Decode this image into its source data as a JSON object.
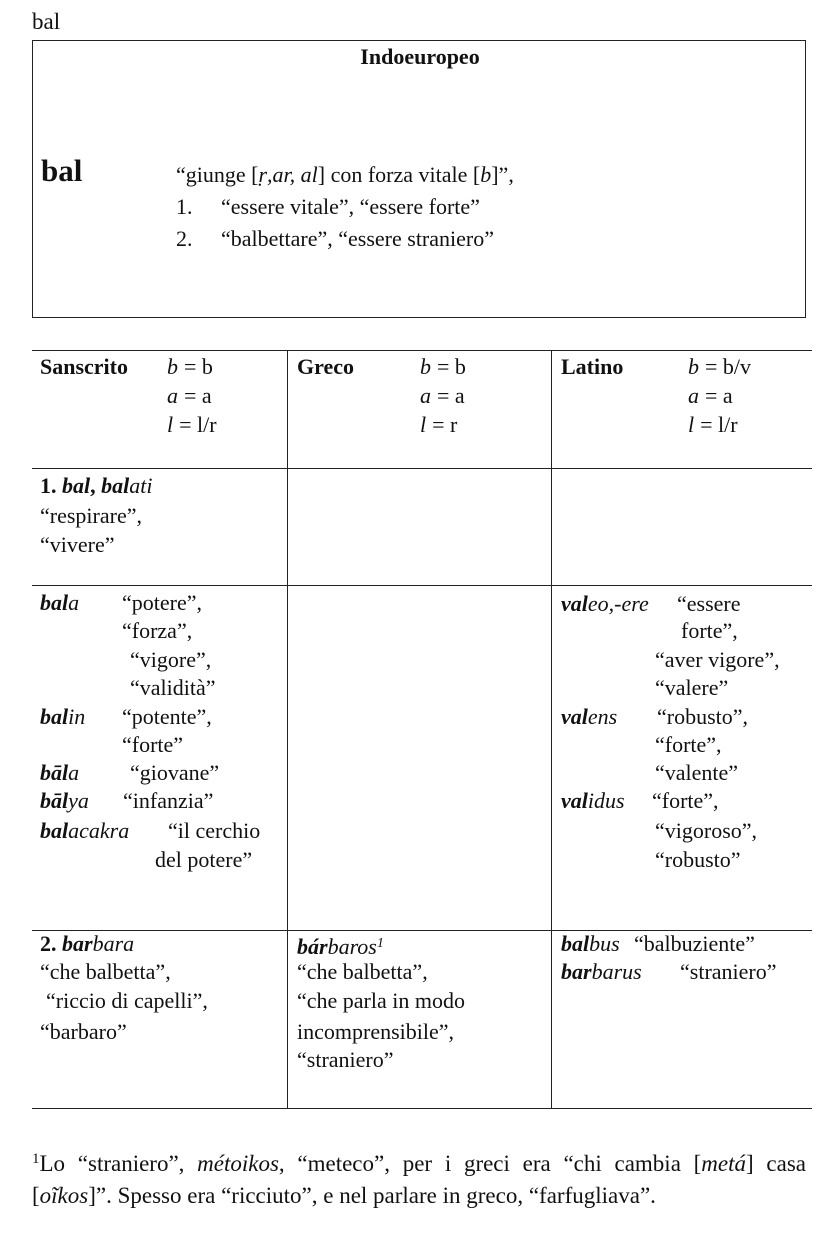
{
  "header": {
    "label": "bal"
  },
  "box": {
    "title": "Indoeuropeo",
    "root": "bal",
    "definition": [
      "“giunge [",
      "ṛ,ar, al",
      "] con forza vitale [",
      "b",
      "]”,"
    ],
    "meanings": [
      [
        "1.",
        "“essere vitale”, “essere forte”"
      ],
      [
        "2.",
        "“balbettare”, “essere straniero”"
      ]
    ]
  },
  "table": {
    "columns": [
      {
        "name": "Sanscrito",
        "rules": [
          [
            "b",
            "= b"
          ],
          [
            "a",
            "= a"
          ],
          [
            "l",
            "= l/r"
          ]
        ]
      },
      {
        "name": "Greco",
        "rules": [
          [
            "b",
            "= b"
          ],
          [
            "a",
            "= a"
          ],
          [
            "l",
            "= r"
          ]
        ]
      },
      {
        "name": "Latino",
        "rules": [
          [
            "b",
            "= b/v"
          ],
          [
            "a",
            "= a"
          ],
          [
            "l",
            "= l/r"
          ]
        ]
      }
    ],
    "rows": [
      [
        [
          [
            "1. ",
            "bal",
            ", ",
            "bal",
            "ati"
          ],
          [
            "“respirare”,"
          ],
          [
            "“vivere”"
          ]
        ],
        [],
        []
      ],
      [
        [
          [
            "bal",
            "a",
            "“potere”,"
          ],
          [
            "“forza”,"
          ],
          [
            "“vigore”,"
          ],
          [
            "“validità”"
          ],
          [
            "bal",
            "in",
            "“potente”,"
          ],
          [
            "“forte”"
          ],
          [
            "bāl",
            "a",
            "“giovane”"
          ],
          [
            "bāl",
            "ya",
            "“infanzia”"
          ],
          [
            "bal",
            "acakra",
            "“il cerchio"
          ],
          [
            "del potere”"
          ]
        ],
        [],
        [
          [
            "val",
            "eo,-ere",
            "“essere"
          ],
          [
            "forte”,"
          ],
          [
            "“aver vigore”,"
          ],
          [
            "“valere”"
          ],
          [
            "val",
            "ens",
            "“robusto”,"
          ],
          [
            "“forte”,"
          ],
          [
            "“valente”"
          ],
          [
            "val",
            "idus",
            "“forte”,"
          ],
          [
            "“vigoroso”,"
          ],
          [
            "“robusto”"
          ]
        ]
      ],
      [
        [
          [
            "2. ",
            "bar",
            "bara"
          ],
          [
            "“che balbetta”,"
          ],
          [
            "“riccio di capelli”,"
          ],
          [
            "“barbaro”"
          ]
        ],
        [
          [
            "bár",
            "baros",
            "1"
          ],
          [
            "“che balbetta”,"
          ],
          [
            "“che parla in modo"
          ],
          [
            "incomprensibile”,"
          ],
          [
            "“straniero”"
          ]
        ],
        [
          [
            "bal",
            "bus",
            "“balbuziente”"
          ],
          [
            "bar",
            "barus",
            "“straniero”"
          ]
        ]
      ]
    ]
  },
  "footnote": [
    "1",
    "Lo “straniero”, ",
    "métoikos",
    ", “meteco”, per i greci era “chi cambia [",
    "metá",
    "] casa [",
    "oĩkos",
    "]”. Spesso era “ricciuto”, e nel parlare in greco, “farfugliava”."
  ]
}
